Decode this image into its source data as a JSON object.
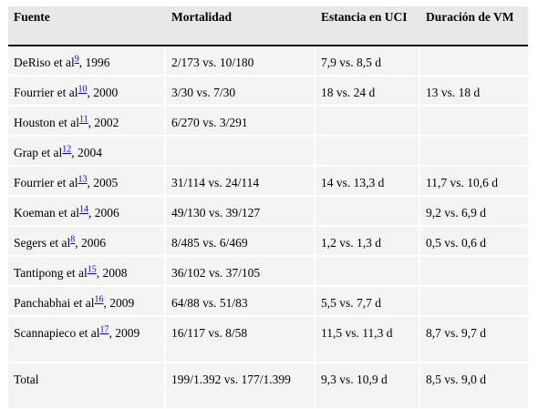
{
  "headers": {
    "fuente": "Fuente",
    "mortalidad": "Mortalidad",
    "estancia": "Estancia en UCI",
    "duracion": "Duración de VM"
  },
  "rows": [
    {
      "author": "DeRiso et al",
      "ref": "9",
      "year": ", 1996",
      "mortalidad": "2/173 vs. 10/180",
      "estancia": "7,9 vs. 8,5 d",
      "duracion": ""
    },
    {
      "author": "Fourrier et al",
      "ref": "10",
      "year": ", 2000",
      "mortalidad": "3/30 vs. 7/30",
      "estancia": "18 vs. 24 d",
      "duracion": "13 vs. 18 d"
    },
    {
      "author": "Houston et al",
      "ref": "11",
      "year": ", 2002",
      "mortalidad": "6/270 vs. 3/291",
      "estancia": "",
      "duracion": ""
    },
    {
      "author": "Grap et al",
      "ref": "12",
      "year": ", 2004",
      "mortalidad": "",
      "estancia": "",
      "duracion": ""
    },
    {
      "author": "Fourrier et al",
      "ref": "13",
      "year": ", 2005",
      "mortalidad": "31/114 vs. 24/114",
      "estancia": "14 vs. 13,3 d",
      "duracion": "11,7 vs. 10,6 d"
    },
    {
      "author": "Koeman et al",
      "ref": "14",
      "year": ", 2006",
      "mortalidad": "49/130 vs. 39/127",
      "estancia": "",
      "duracion": "9,2 vs. 6,9 d"
    },
    {
      "author": "Segers et al",
      "ref": "8",
      "year": ", 2006",
      "mortalidad": "8/485 vs. 6/469",
      "estancia": "1,2 vs. 1,3 d",
      "duracion": "0,5 vs. 0,6 d"
    },
    {
      "author": "Tantipong et al",
      "ref": "15",
      "year": ", 2008",
      "mortalidad": "36/102 vs. 37/105",
      "estancia": "",
      "duracion": ""
    },
    {
      "author": "Panchabhai et al",
      "ref": "16",
      "year": ", 2009",
      "mortalidad": "64/88 vs. 51/83",
      "estancia": "5,5 vs. 7,7 d",
      "duracion": ""
    },
    {
      "author": "Scannapieco et al",
      "ref": "17",
      "year": ", 2009",
      "mortalidad": "16/117 vs. 8/58",
      "estancia": "11,5 vs. 11,3 d",
      "duracion": "8,7 vs. 9,7 d"
    },
    {
      "author": "Total",
      "ref": "",
      "year": "",
      "mortalidad": "199/1.392 vs. 177/1.399",
      "estancia": "9,3 vs. 10,9 d",
      "duracion": "8,5 vs. 9,0 d"
    }
  ]
}
